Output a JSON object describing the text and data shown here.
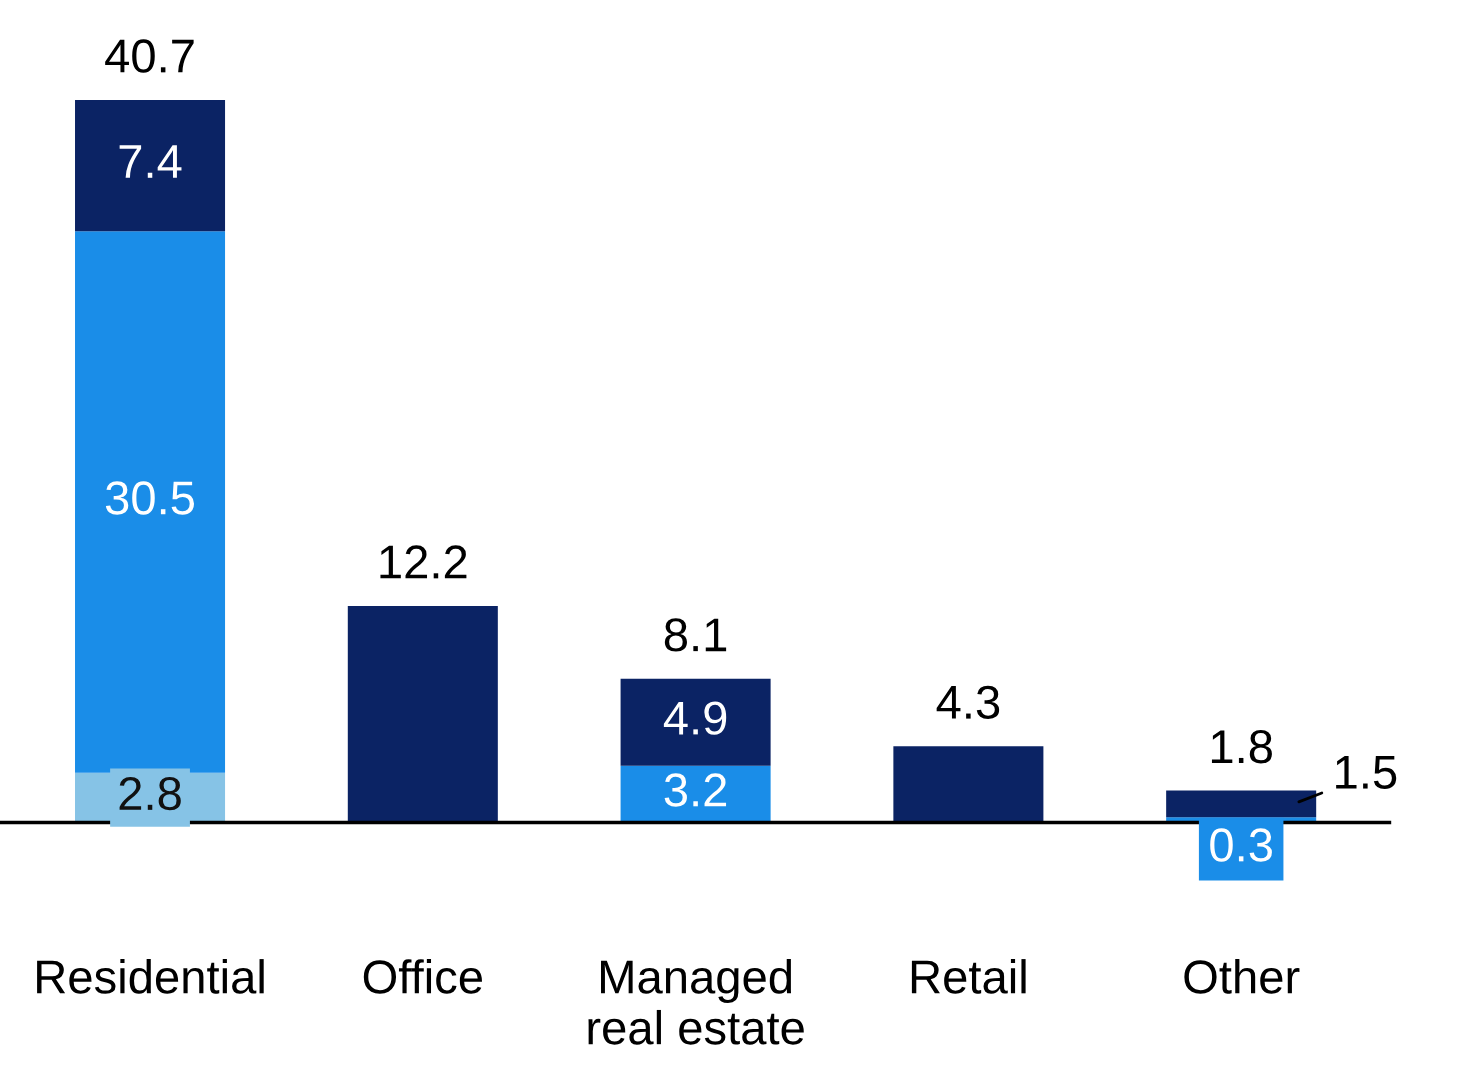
{
  "chart_data": {
    "type": "bar",
    "stacked": true,
    "categories": [
      "Residential",
      "Office",
      "Managed\nreal estate",
      "Retail",
      "Other"
    ],
    "series": [
      {
        "color": "#86c3e6",
        "values": [
          2.8,
          0,
          0,
          0,
          0
        ],
        "value_labels": [
          "2.8",
          null,
          null,
          null,
          null
        ]
      },
      {
        "color": "#1a8de8",
        "values": [
          30.5,
          0,
          3.2,
          0,
          0.3
        ],
        "value_labels": [
          "30.5",
          null,
          "3.2",
          null,
          "0.3"
        ]
      },
      {
        "color": "#0b2364",
        "values": [
          7.4,
          12.2,
          4.9,
          4.3,
          1.5
        ],
        "value_labels": [
          "7.4",
          null,
          "4.9",
          null,
          "1.5"
        ]
      }
    ],
    "totals": [
      "40.7",
      "12.2",
      "8.1",
      "4.3",
      "1.8"
    ],
    "grid": false,
    "legend": false
  }
}
